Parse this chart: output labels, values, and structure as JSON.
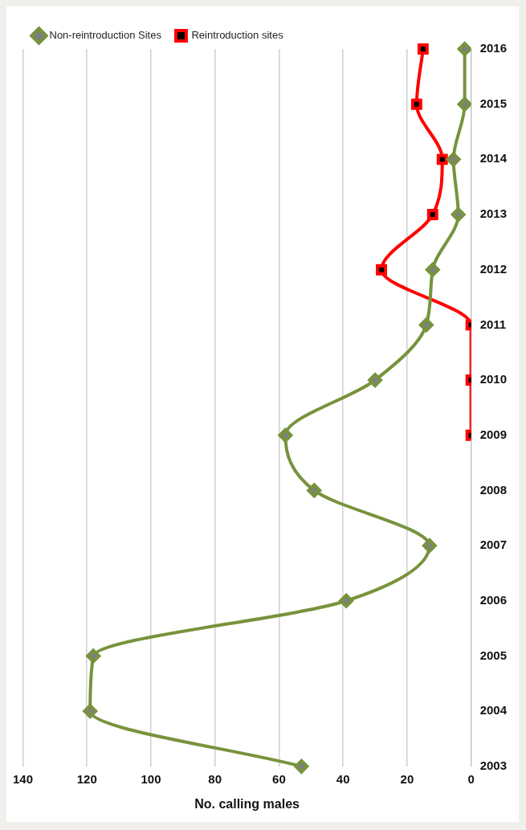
{
  "chart_data": {
    "type": "line",
    "orientation": "horizontal",
    "xlabel": "No. calling males",
    "categories": [
      "2016",
      "2015",
      "2014",
      "2013",
      "2012",
      "2011",
      "2010",
      "2009",
      "2008",
      "2007",
      "2006",
      "2005",
      "2004",
      "2003"
    ],
    "series": [
      {
        "name": "Non-reintroduction Sites",
        "color": "#77933c",
        "marker": "diamond",
        "values": [
          2,
          2,
          5.5,
          4,
          12,
          14,
          30,
          58,
          49,
          13,
          39,
          118,
          119,
          53
        ]
      },
      {
        "name": "Reintroduction sites",
        "color": "#ff0000",
        "marker": "square",
        "values": [
          15,
          17,
          9,
          12,
          28,
          0,
          0,
          0,
          null,
          null,
          null,
          null,
          null,
          null
        ]
      }
    ],
    "xlim": [
      140,
      0
    ],
    "xticks": [
      140,
      120,
      100,
      80,
      60,
      40,
      20,
      0
    ],
    "grid": "x",
    "legend": "top left"
  }
}
